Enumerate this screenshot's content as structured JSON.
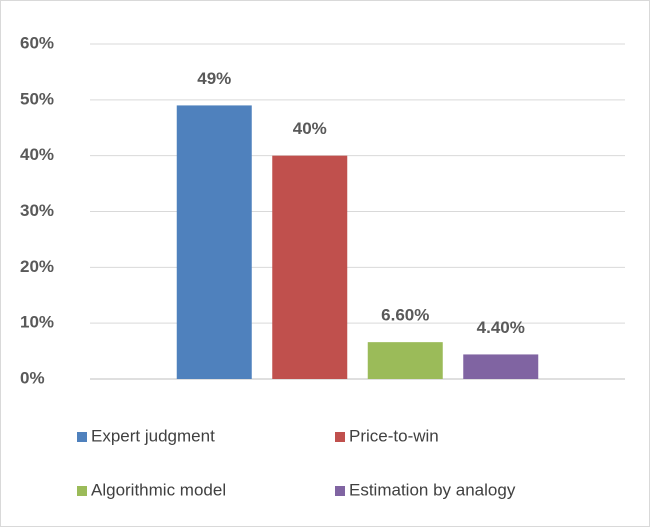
{
  "chart_data": {
    "type": "bar",
    "categories": [
      null
    ],
    "series": [
      {
        "name": "Expert judgment",
        "color": "#4f81bd",
        "values": [
          49
        ],
        "value_labels": [
          "49%"
        ]
      },
      {
        "name": "Price-to-win",
        "color": "#c0504d",
        "values": [
          40
        ],
        "value_labels": [
          "40%"
        ]
      },
      {
        "name": "Algorithmic model",
        "color": "#9bbb59",
        "values": [
          6.6
        ],
        "value_labels": [
          "6.60%"
        ]
      },
      {
        "name": "Estimation by analogy",
        "color": "#8064a2",
        "values": [
          4.4
        ],
        "value_labels": [
          "4.40%"
        ]
      }
    ],
    "ylim": [
      0,
      60
    ],
    "yticks": [
      {
        "value": 0,
        "label": "0%"
      },
      {
        "value": 10,
        "label": "10%"
      },
      {
        "value": 20,
        "label": "20%"
      },
      {
        "value": 30,
        "label": "30%"
      },
      {
        "value": 40,
        "label": "40%"
      },
      {
        "value": 50,
        "label": "50%"
      },
      {
        "value": 60,
        "label": "60%"
      }
    ],
    "grid": true,
    "legend": "bottom"
  }
}
